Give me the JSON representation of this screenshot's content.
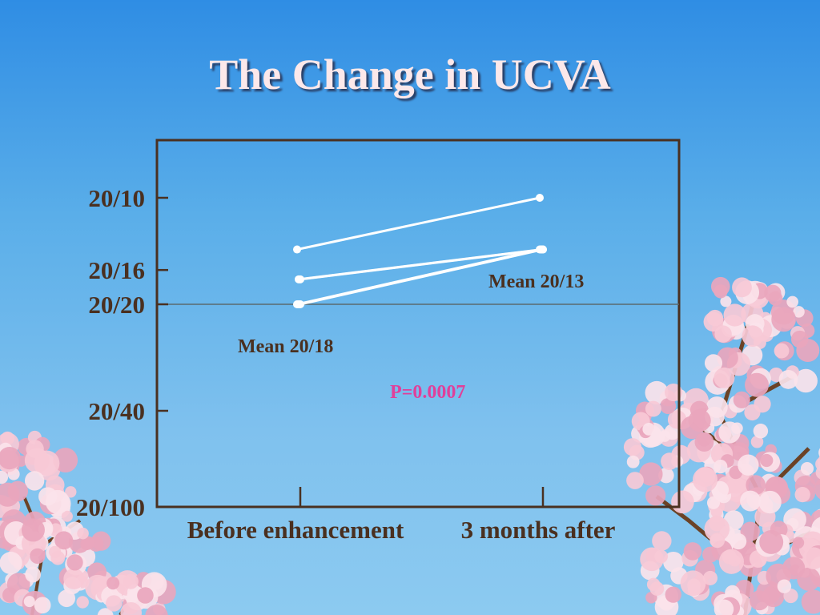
{
  "slide": {
    "title": "The Change in UCVA"
  },
  "chart_data": {
    "type": "line",
    "title": "The Change in UCVA",
    "xlabel": "",
    "ylabel": "",
    "categories": [
      "Before enhancement",
      "3 months after"
    ],
    "y_ticks": [
      "20/10",
      "20/16",
      "20/20",
      "20/40",
      "20/100"
    ],
    "y_reference_line": "20/20",
    "series": [
      {
        "values": [
          "20/14",
          "20/10"
        ]
      },
      {
        "values": [
          "20/17",
          "20/14"
        ]
      },
      {
        "values": [
          "20/17",
          "20/14"
        ]
      },
      {
        "values": [
          "20/20",
          "20/14"
        ]
      },
      {
        "values": [
          "20/20",
          "20/14"
        ]
      },
      {
        "values": [
          "20/20",
          "20/14"
        ]
      }
    ],
    "annotations": {
      "mean_before": "Mean 20/18",
      "mean_after": "Mean 20/13",
      "p_value": "P=0.0007"
    },
    "grid": false,
    "colors": {
      "lines": "#ffffff",
      "axis": "#4a3020",
      "reference_line": "#5a6a70",
      "p_value": "#e0409a",
      "labels": "#4a3020"
    }
  },
  "decor": {
    "blossom_colors": [
      "#f7c9d6",
      "#fbe3ea",
      "#e9a6bd"
    ],
    "branch_color": "#6b4226"
  }
}
